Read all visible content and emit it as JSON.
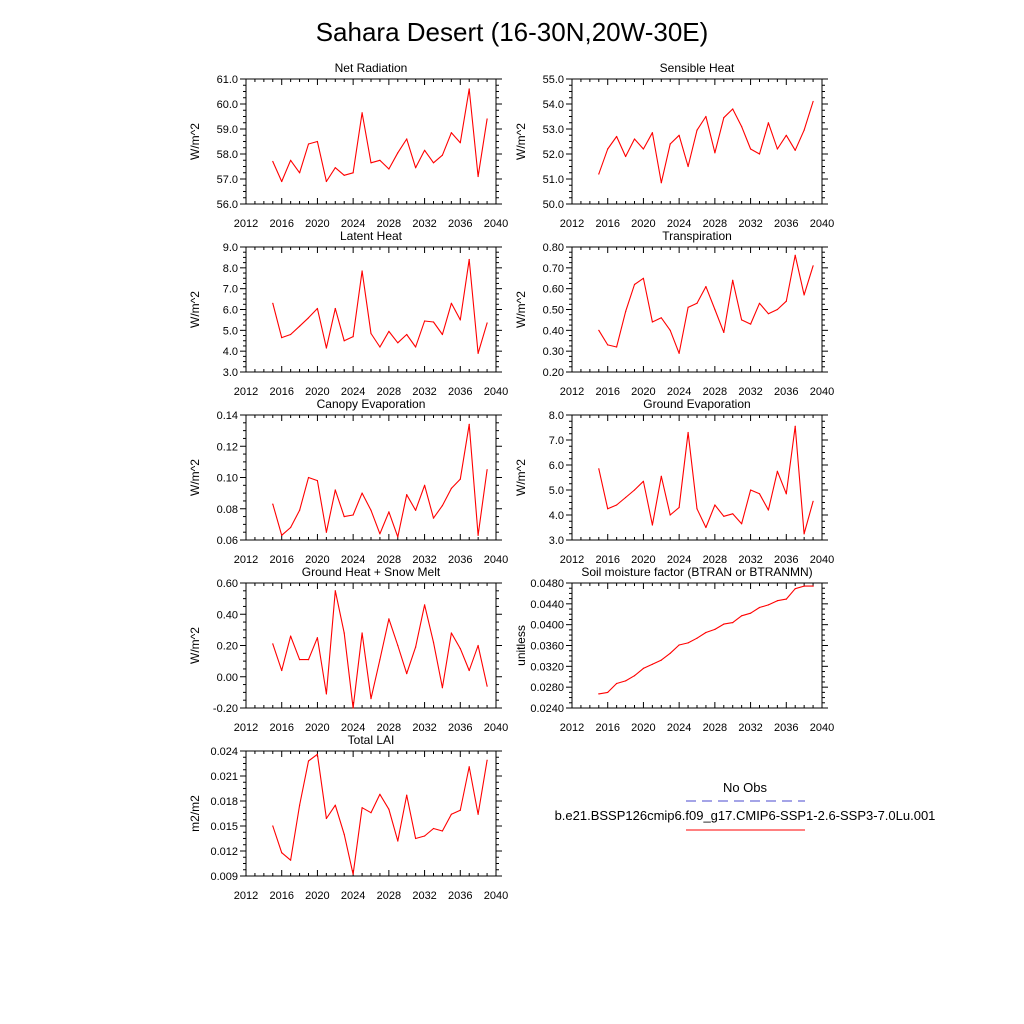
{
  "figure": {
    "title": "Sahara Desert (16-30N,20W-30E)",
    "series_color": "#ff0000",
    "obs_color": "#4a4acf"
  },
  "legend": {
    "obs_label": "No Obs",
    "model_label": "b.e21.BSSP126cmip6.f09_g17.CMIP6-SSP1-2.6-SSP3-7.0Lu.001"
  },
  "chart_data": [
    {
      "type": "line",
      "title": "Net Radiation",
      "ylabel": "W/m^2",
      "xlim": [
        2012,
        2040
      ],
      "ylim": [
        56.0,
        61.0
      ],
      "xticks": [
        2012,
        2016,
        2020,
        2024,
        2028,
        2032,
        2036,
        2040
      ],
      "yticks": [
        56.0,
        57.0,
        58.0,
        59.0,
        60.0,
        61.0
      ],
      "ytick_decimals": 1,
      "x": [
        2015,
        2016,
        2017,
        2018,
        2019,
        2020,
        2021,
        2022,
        2023,
        2024,
        2025,
        2026,
        2027,
        2028,
        2029,
        2030,
        2031,
        2032,
        2033,
        2034,
        2035,
        2036,
        2037,
        2038,
        2039
      ],
      "values": [
        57.7,
        56.9,
        57.75,
        57.25,
        58.4,
        58.5,
        56.9,
        57.45,
        57.15,
        57.25,
        59.65,
        57.65,
        57.75,
        57.4,
        58.05,
        58.6,
        57.45,
        58.15,
        57.65,
        57.95,
        58.85,
        58.45,
        60.6,
        57.1,
        59.4
      ]
    },
    {
      "type": "line",
      "title": "Sensible Heat",
      "ylabel": "W/m^2",
      "xlim": [
        2012,
        2040
      ],
      "ylim": [
        50.0,
        55.0
      ],
      "xticks": [
        2012,
        2016,
        2020,
        2024,
        2028,
        2032,
        2036,
        2040
      ],
      "yticks": [
        50.0,
        51.0,
        52.0,
        53.0,
        54.0,
        55.0
      ],
      "ytick_decimals": 1,
      "x": [
        2015,
        2016,
        2017,
        2018,
        2019,
        2020,
        2021,
        2022,
        2023,
        2024,
        2025,
        2026,
        2027,
        2028,
        2029,
        2030,
        2031,
        2032,
        2033,
        2034,
        2035,
        2036,
        2037,
        2038,
        2039
      ],
      "values": [
        51.2,
        52.2,
        52.7,
        51.9,
        52.6,
        52.2,
        52.85,
        50.85,
        52.4,
        52.75,
        51.5,
        52.95,
        53.5,
        52.05,
        53.45,
        53.8,
        53.1,
        52.2,
        52.0,
        53.25,
        52.2,
        52.75,
        52.15,
        52.95,
        54.1
      ]
    },
    {
      "type": "line",
      "title": "Latent Heat",
      "ylabel": "W/m^2",
      "xlim": [
        2012,
        2040
      ],
      "ylim": [
        3.0,
        9.0
      ],
      "xticks": [
        2012,
        2016,
        2020,
        2024,
        2028,
        2032,
        2036,
        2040
      ],
      "yticks": [
        3.0,
        4.0,
        5.0,
        6.0,
        7.0,
        8.0,
        9.0
      ],
      "ytick_decimals": 1,
      "x": [
        2015,
        2016,
        2017,
        2018,
        2019,
        2020,
        2021,
        2022,
        2023,
        2024,
        2025,
        2026,
        2027,
        2028,
        2029,
        2030,
        2031,
        2032,
        2033,
        2034,
        2035,
        2036,
        2037,
        2038,
        2039
      ],
      "values": [
        6.3,
        4.65,
        4.8,
        5.2,
        5.6,
        6.05,
        4.15,
        6.05,
        4.5,
        4.7,
        7.85,
        4.85,
        4.2,
        4.95,
        4.4,
        4.8,
        4.2,
        5.45,
        5.4,
        4.8,
        6.3,
        5.5,
        8.4,
        3.9,
        5.35
      ]
    },
    {
      "type": "line",
      "title": "Transpiration",
      "ylabel": "W/m^2",
      "xlim": [
        2012,
        2040
      ],
      "ylim": [
        0.2,
        0.8
      ],
      "xticks": [
        2012,
        2016,
        2020,
        2024,
        2028,
        2032,
        2036,
        2040
      ],
      "yticks": [
        0.2,
        0.3,
        0.4,
        0.5,
        0.6,
        0.7,
        0.8
      ],
      "ytick_decimals": 2,
      "x": [
        2015,
        2016,
        2017,
        2018,
        2019,
        2020,
        2021,
        2022,
        2023,
        2024,
        2025,
        2026,
        2027,
        2028,
        2029,
        2030,
        2031,
        2032,
        2033,
        2034,
        2035,
        2036,
        2037,
        2038,
        2039
      ],
      "values": [
        0.4,
        0.33,
        0.32,
        0.49,
        0.62,
        0.65,
        0.44,
        0.46,
        0.4,
        0.29,
        0.51,
        0.53,
        0.61,
        0.5,
        0.39,
        0.64,
        0.45,
        0.43,
        0.53,
        0.48,
        0.5,
        0.54,
        0.76,
        0.57,
        0.71
      ]
    },
    {
      "type": "line",
      "title": "Canopy Evaporation",
      "ylabel": "W/m^2",
      "xlim": [
        2012,
        2040
      ],
      "ylim": [
        0.06,
        0.14
      ],
      "xticks": [
        2012,
        2016,
        2020,
        2024,
        2028,
        2032,
        2036,
        2040
      ],
      "yticks": [
        0.06,
        0.08,
        0.1,
        0.12,
        0.14
      ],
      "ytick_decimals": 2,
      "x": [
        2015,
        2016,
        2017,
        2018,
        2019,
        2020,
        2021,
        2022,
        2023,
        2024,
        2025,
        2026,
        2027,
        2028,
        2029,
        2030,
        2031,
        2032,
        2033,
        2034,
        2035,
        2036,
        2037,
        2038,
        2039
      ],
      "values": [
        0.083,
        0.063,
        0.068,
        0.079,
        0.1,
        0.098,
        0.065,
        0.092,
        0.075,
        0.076,
        0.09,
        0.079,
        0.064,
        0.078,
        0.062,
        0.089,
        0.079,
        0.095,
        0.074,
        0.082,
        0.093,
        0.099,
        0.134,
        0.063,
        0.105
      ]
    },
    {
      "type": "line",
      "title": "Ground Evaporation",
      "ylabel": "W/m^2",
      "xlim": [
        2012,
        2040
      ],
      "ylim": [
        3.0,
        8.0
      ],
      "xticks": [
        2012,
        2016,
        2020,
        2024,
        2028,
        2032,
        2036,
        2040
      ],
      "yticks": [
        3.0,
        4.0,
        5.0,
        6.0,
        7.0,
        8.0
      ],
      "ytick_decimals": 1,
      "x": [
        2015,
        2016,
        2017,
        2018,
        2019,
        2020,
        2021,
        2022,
        2023,
        2024,
        2025,
        2026,
        2027,
        2028,
        2029,
        2030,
        2031,
        2032,
        2033,
        2034,
        2035,
        2036,
        2037,
        2038,
        2039
      ],
      "values": [
        5.85,
        4.25,
        4.4,
        4.7,
        5.0,
        5.35,
        3.6,
        5.55,
        4.0,
        4.3,
        7.3,
        4.25,
        3.5,
        4.4,
        3.95,
        4.05,
        3.65,
        5.0,
        4.85,
        4.2,
        5.75,
        4.85,
        7.55,
        3.25,
        4.55
      ]
    },
    {
      "type": "line",
      "title": "Ground Heat + Snow Melt",
      "ylabel": "W/m^2",
      "xlim": [
        2012,
        2040
      ],
      "ylim": [
        -0.2,
        0.6
      ],
      "xticks": [
        2012,
        2016,
        2020,
        2024,
        2028,
        2032,
        2036,
        2040
      ],
      "yticks": [
        -0.2,
        0.0,
        0.2,
        0.4,
        0.6
      ],
      "ytick_decimals": 2,
      "x": [
        2015,
        2016,
        2017,
        2018,
        2019,
        2020,
        2021,
        2022,
        2023,
        2024,
        2025,
        2026,
        2027,
        2028,
        2029,
        2030,
        2031,
        2032,
        2033,
        2034,
        2035,
        2036,
        2037,
        2038,
        2039
      ],
      "values": [
        0.21,
        0.04,
        0.26,
        0.11,
        0.11,
        0.25,
        -0.11,
        0.55,
        0.28,
        -0.2,
        0.28,
        -0.14,
        0.11,
        0.37,
        0.2,
        0.02,
        0.19,
        0.46,
        0.22,
        -0.07,
        0.28,
        0.18,
        0.04,
        0.2,
        -0.06
      ]
    },
    {
      "type": "line",
      "title": "Soil moisture factor (BTRAN or BTRANMN)",
      "ylabel": "unitless",
      "xlim": [
        2012,
        2040
      ],
      "ylim": [
        0.024,
        0.048
      ],
      "xticks": [
        2012,
        2016,
        2020,
        2024,
        2028,
        2032,
        2036,
        2040
      ],
      "yticks": [
        0.024,
        0.028,
        0.032,
        0.036,
        0.04,
        0.044,
        0.048
      ],
      "ytick_decimals": 4,
      "x": [
        2015,
        2016,
        2017,
        2018,
        2019,
        2020,
        2021,
        2022,
        2023,
        2024,
        2025,
        2026,
        2027,
        2028,
        2029,
        2030,
        2031,
        2032,
        2033,
        2034,
        2035,
        2036,
        2037,
        2038,
        2039
      ],
      "values": [
        0.0267,
        0.027,
        0.0287,
        0.0292,
        0.0302,
        0.0316,
        0.0324,
        0.0332,
        0.0345,
        0.0361,
        0.0365,
        0.0374,
        0.0385,
        0.0391,
        0.0401,
        0.0404,
        0.0417,
        0.0422,
        0.0433,
        0.0438,
        0.0446,
        0.0449,
        0.0469,
        0.0474,
        0.0474
      ]
    },
    {
      "type": "line",
      "title": "Total LAI",
      "ylabel": "m2/m2",
      "xlim": [
        2012,
        2040
      ],
      "ylim": [
        0.009,
        0.024
      ],
      "xticks": [
        2012,
        2016,
        2020,
        2024,
        2028,
        2032,
        2036,
        2040
      ],
      "yticks": [
        0.009,
        0.012,
        0.015,
        0.018,
        0.021,
        0.024
      ],
      "ytick_decimals": 3,
      "x": [
        2015,
        2016,
        2017,
        2018,
        2019,
        2020,
        2021,
        2022,
        2023,
        2024,
        2025,
        2026,
        2027,
        2028,
        2029,
        2030,
        2031,
        2032,
        2033,
        2034,
        2035,
        2036,
        2037,
        2038,
        2039
      ],
      "values": [
        0.015,
        0.0118,
        0.0109,
        0.0175,
        0.0228,
        0.0236,
        0.0159,
        0.0175,
        0.014,
        0.0092,
        0.0172,
        0.0166,
        0.0188,
        0.017,
        0.0132,
        0.0187,
        0.0135,
        0.0138,
        0.0147,
        0.0144,
        0.0164,
        0.0169,
        0.0221,
        0.0164,
        0.0229
      ]
    }
  ]
}
